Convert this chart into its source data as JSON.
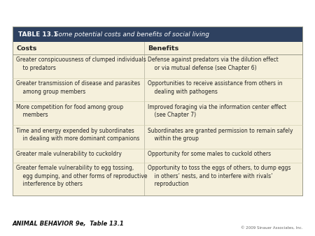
{
  "title_bold": "TABLE 13.1",
  "title_italic": "  Some potential costs and benefits of social living",
  "title_bg": "#2e4160",
  "table_bg": "#f5f0dc",
  "header_color": "#222222",
  "text_color": "#222222",
  "footer_left": "ANIMAL BEHAVIOR 9e,  Table 13.1",
  "footer_right": "© 2009 Sinauer Associates, Inc.",
  "col_headers": [
    "Costs",
    "Benefits"
  ],
  "rows_left": [
    "Greater conspicuousness of clumped individuals\n    to predators",
    "Greater transmission of disease and parasites\n    among group members",
    "More competition for food among group\n    members",
    "Time and energy expended by subordinates\n    in dealing with more dominant companions",
    "Greater male vulnerability to cuckoldry",
    "Greater female vulnerability to egg tossing,\n    egg dumping, and other forms of reproductive\n    interference by others"
  ],
  "rows_right": [
    "Defense against predators via the dilution effect\n    or via mutual defense (see Chapter 6)",
    "Opportunities to receive assistance from others in\n    dealing with pathogens",
    "Improved foraging via the information center effect\n    (see Chapter 7)",
    "Subordinates are granted permission to remain safely\n    within the group",
    "Opportunity for some males to cuckold others",
    "Opportunity to toss the eggs of others, to dump eggs\n    in others’ nests, and to interfere with rivals’\n    reproduction"
  ],
  "row_line_counts": [
    2,
    2,
    2,
    2,
    1,
    3
  ],
  "fig_bg": "#ffffff",
  "border_color": "#999988",
  "sep_color": "#ccccaa",
  "title_text_color": "#ffffff"
}
